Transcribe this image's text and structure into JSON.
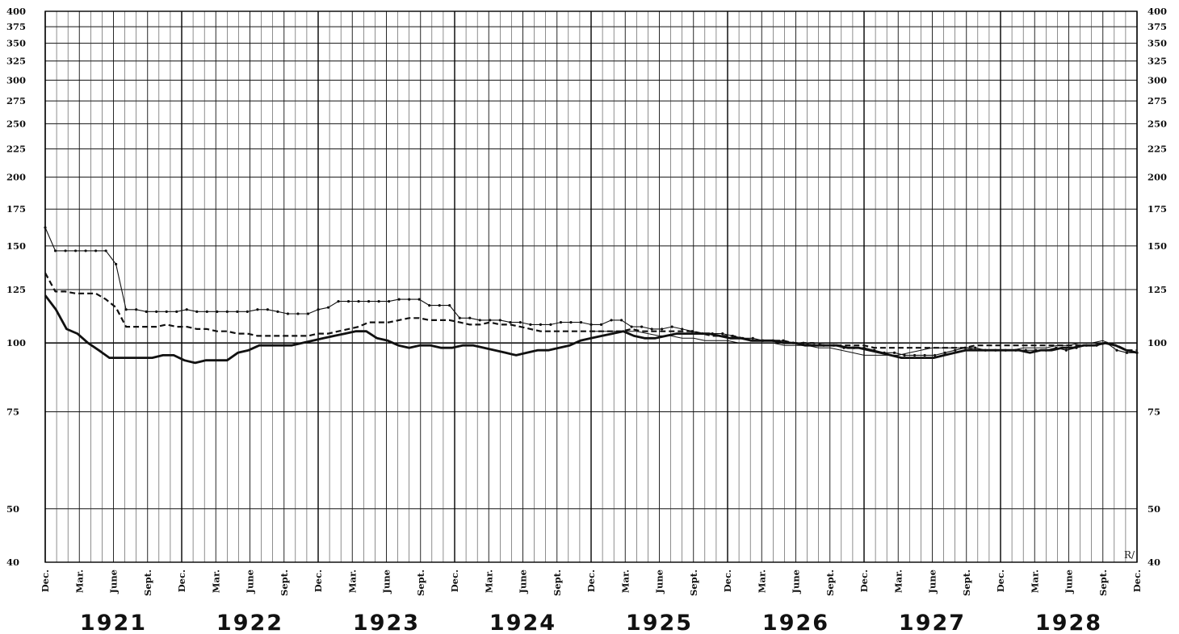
{
  "chart_data": {
    "type": "line",
    "scale": "log",
    "ylim": [
      40,
      400
    ],
    "y_ticks": [
      40,
      50,
      75,
      100,
      125,
      150,
      175,
      200,
      225,
      250,
      275,
      300,
      325,
      350,
      375,
      400
    ],
    "x_range": [
      "Dec 1920",
      "Dec 1928"
    ],
    "month_labels": [
      "Dec.",
      "Mar.",
      "June",
      "Sept.",
      "Dec.",
      "Mar.",
      "June",
      "Sept.",
      "Dec.",
      "Mar.",
      "June",
      "Sept.",
      "Dec.",
      "Mar.",
      "June",
      "Sept.",
      "Dec.",
      "Mar.",
      "June",
      "Sept.",
      "Dec.",
      "Mar.",
      "June",
      "Sept.",
      "Dec.",
      "Mar.",
      "June",
      "Sept.",
      "Dec.",
      "Mar.",
      "June",
      "Sept.",
      "Dec."
    ],
    "years": [
      "1921",
      "1922",
      "1923",
      "1924",
      "1925",
      "1926",
      "1927",
      "1928"
    ],
    "corner_mark": "R/",
    "grid": true,
    "series": [
      {
        "style": "thin-dotted",
        "color": "#111111",
        "values": [
          162,
          147,
          147,
          147,
          147,
          147,
          147,
          139,
          115,
          115,
          114,
          114,
          114,
          114,
          115,
          114,
          114,
          114,
          114,
          114,
          114,
          115,
          115,
          114,
          113,
          113,
          113,
          115,
          116,
          119,
          119,
          119,
          119,
          119,
          119,
          120,
          120,
          120,
          117,
          117,
          117,
          111,
          111,
          110,
          110,
          110,
          109,
          109,
          108,
          108,
          108,
          109,
          109,
          109,
          108,
          108,
          110,
          110,
          107,
          107,
          106,
          106,
          107,
          106,
          105,
          104,
          104,
          104,
          103,
          102,
          102,
          101,
          101,
          101,
          100,
          100,
          99,
          99,
          99,
          98,
          98,
          98,
          97,
          96,
          96,
          95,
          95,
          95,
          95,
          96,
          97,
          98,
          98,
          97,
          97,
          97,
          97,
          97,
          97,
          97,
          98,
          97,
          98,
          99,
          99,
          100,
          97,
          96,
          96
        ]
      },
      {
        "style": "dashed",
        "color": "#111111",
        "values": [
          134,
          124,
          124,
          123,
          123,
          123,
          120,
          116,
          107,
          107,
          107,
          107,
          108,
          107,
          107,
          106,
          106,
          105,
          105,
          104,
          104,
          103,
          103,
          103,
          103,
          103,
          103,
          104,
          104,
          105,
          106,
          107,
          109,
          109,
          109,
          110,
          111,
          111,
          110,
          110,
          110,
          109,
          108,
          108,
          109,
          108,
          108,
          107,
          106,
          105,
          105,
          105,
          105,
          105,
          105,
          105,
          105,
          105,
          106,
          105,
          105,
          105,
          105,
          105,
          105,
          104,
          103,
          103,
          103,
          102,
          101,
          101,
          101,
          101,
          100,
          100,
          100,
          99,
          99,
          99,
          99,
          99,
          98,
          98,
          98,
          98,
          98,
          98,
          98,
          98,
          98,
          98,
          99,
          99,
          99,
          99,
          99,
          99,
          99,
          99,
          99,
          99,
          99,
          99,
          99,
          100,
          99,
          97,
          97
        ]
      },
      {
        "style": "thick",
        "color": "#111111",
        "values": [
          122,
          115,
          106,
          104,
          100,
          97,
          94,
          94,
          94,
          94,
          94,
          95,
          95,
          93,
          92,
          93,
          93,
          93,
          96,
          97,
          99,
          99,
          99,
          99,
          100,
          101,
          102,
          103,
          104,
          105,
          105,
          102,
          101,
          99,
          98,
          99,
          99,
          98,
          98,
          99,
          99,
          98,
          97,
          96,
          95,
          96,
          97,
          97,
          98,
          99,
          101,
          102,
          103,
          104,
          105,
          103,
          102,
          102,
          103,
          104,
          104,
          104,
          104,
          103,
          102,
          102,
          101,
          101,
          101,
          100,
          100,
          99,
          99,
          99,
          99,
          98,
          98,
          97,
          96,
          95,
          94,
          94,
          94,
          94,
          95,
          96,
          97,
          97,
          97,
          97,
          97,
          97,
          96,
          97,
          97,
          98,
          98,
          99,
          99,
          100,
          99,
          97,
          96
        ]
      },
      {
        "style": "thin",
        "color": "#111111",
        "values": [
          105,
          105,
          105,
          105,
          105,
          104,
          103,
          103,
          102,
          102,
          101,
          101,
          101,
          100,
          100,
          100,
          100,
          99,
          99,
          99,
          98,
          98,
          97,
          96,
          95,
          95,
          95,
          95,
          96,
          97,
          98,
          98,
          98,
          98,
          97,
          97,
          97,
          97,
          98,
          98,
          98,
          99,
          99,
          100,
          100,
          101,
          99,
          97,
          96
        ]
      }
    ]
  }
}
